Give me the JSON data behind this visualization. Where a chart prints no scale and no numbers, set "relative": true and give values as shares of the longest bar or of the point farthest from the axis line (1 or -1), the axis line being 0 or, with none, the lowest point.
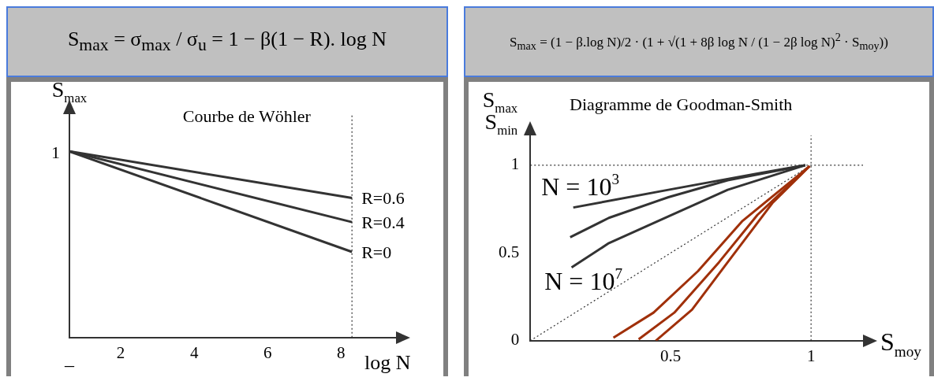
{
  "chart_data": [
    {
      "type": "line",
      "title": "S$_{max}$ = σ$_{max}$ / σ$_{u}$ = 1 − β(1 − R). log N",
      "subtitle": "Courbe de Wöhler",
      "xlabel": "log N",
      "ylabel": "S$_{max}$",
      "relative": true,
      "xlim": [
        0.6,
        9.5
      ],
      "xticks": [
        2,
        4,
        6,
        8
      ],
      "x": [
        0.6,
        8.3
      ],
      "grid": false,
      "legend": false,
      "marker": "none",
      "line_style": "solid",
      "series": [
        {
          "name": "R=0.6",
          "color": "#333333",
          "values": [
            1,
            0.75
          ]
        },
        {
          "name": "R=0.4",
          "color": "#333333",
          "values": [
            1,
            0.62
          ]
        },
        {
          "name": "R=0",
          "color": "#333333",
          "values": [
            1,
            0.46
          ]
        }
      ],
      "ref_lines": [
        {
          "axis": "x",
          "value": 8.3,
          "line_style": "dotted",
          "color": "#333333"
        }
      ],
      "annotations": [
        "1",
        "–"
      ]
    },
    {
      "type": "line",
      "title": "S$_{max}$ = (1 − β.log N)/2 · (1 + √(1 + 8β log N / (1 − 2β log N)$^{2}$ · S$_{moy}$))",
      "subtitle": "Diagramme de Goodman-Smith",
      "xlabel": "S$_{moy}$",
      "ylabel": "S$_{max}$\nS$_{min}$",
      "xlim": [
        0,
        1.185
      ],
      "ylim": [
        0,
        1.17
      ],
      "xticks": [
        0.5,
        1
      ],
      "yticks": [
        0,
        0.5,
        1
      ],
      "grid": false,
      "legend": false,
      "marker": "none",
      "line_style": "solid",
      "series": [
        {
          "color": "#333333",
          "x": [
            0.153,
            0.492,
            0.809,
            0.979
          ],
          "values": [
            0.759,
            0.86,
            0.953,
            1
          ]
        },
        {
          "color": "#333333",
          "x": [
            0.142,
            0.28,
            0.492,
            0.703,
            0.979
          ],
          "values": [
            0.59,
            0.7,
            0.818,
            0.914,
            1
          ]
        },
        {
          "color": "#333333",
          "x": [
            0.147,
            0.28,
            0.492,
            0.703,
            0.979
          ],
          "values": [
            0.417,
            0.556,
            0.708,
            0.86,
            1
          ]
        },
        {
          "color": "#a0300a",
          "x": [
            0.296,
            0.439,
            0.597,
            0.756,
            0.995
          ],
          "values": [
            0.017,
            0.16,
            0.396,
            0.683,
            0.995
          ]
        },
        {
          "color": "#a0300a",
          "x": [
            0.386,
            0.513,
            0.672,
            0.809,
            0.995
          ],
          "values": [
            0.008,
            0.16,
            0.447,
            0.717,
            0.995
          ]
        },
        {
          "color": "#a0300a",
          "x": [
            0.447,
            0.576,
            0.703,
            0.862,
            0.995
          ],
          "values": [
            0,
            0.177,
            0.447,
            0.784,
            0.995
          ]
        },
        {
          "type": "line",
          "color": "#333333",
          "line_style": "dotted",
          "x": [
            0,
            1
          ],
          "values": [
            0,
            1
          ]
        }
      ],
      "ref_lines": [
        {
          "axis": "y",
          "value": 1,
          "line_style": "dotted",
          "color": "#333333"
        },
        {
          "axis": "x",
          "value": 1,
          "line_style": "dotted",
          "color": "#333333"
        }
      ],
      "annotations": [
        "N = 10$^{3}$",
        "N = 10$^{7}$"
      ]
    }
  ]
}
